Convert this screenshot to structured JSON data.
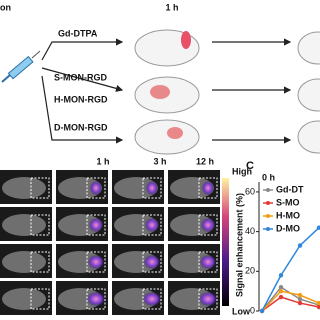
{
  "panel_a": {
    "label_fragment": "on",
    "time": "1 h",
    "groups": [
      "Gd-DTPA",
      "S-MON-RGD",
      "H-MON-RGD",
      "D-MON-RGD"
    ]
  },
  "panel_b": {
    "times": [
      "1 h",
      "3 h",
      "12 h"
    ],
    "colorbar_high": "High",
    "colorbar_low": "Low"
  },
  "chart_data": {
    "type": "line",
    "panel_label": "C",
    "annotation": "0 h",
    "ylabel": "Signal enhancement (%)",
    "categories": [
      null,
      null,
      null,
      null
    ],
    "series": [
      {
        "name": "Gd-DT",
        "color": "#8a8a8a",
        "values": [
          0,
          12,
          6,
          3
        ]
      },
      {
        "name": "S-MO",
        "color": "#e53935",
        "values": [
          0,
          7,
          4,
          2
        ]
      },
      {
        "name": "H-MO",
        "color": "#f39c12",
        "values": [
          0,
          10,
          8,
          4
        ]
      },
      {
        "name": "D-MO",
        "color": "#2e86de",
        "values": [
          0,
          18,
          33,
          42
        ]
      }
    ],
    "ylim": [
      0,
      65
    ],
    "yticks": [
      0,
      20,
      40,
      60
    ]
  }
}
